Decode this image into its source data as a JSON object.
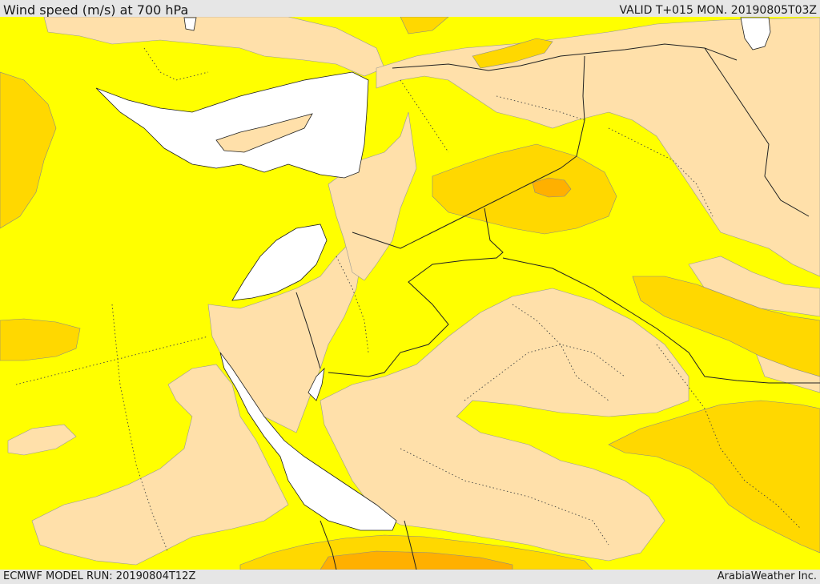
{
  "header": {
    "title": "Wind speed (m/s) at 700 hPa",
    "valid": "VALID T+015 MON. 20190805T03Z"
  },
  "footer": {
    "model_run": "ECMWF MODEL RUN: 20190804T12Z",
    "credit": "ArabiaWeather Inc."
  },
  "colors": {
    "sea_white": "#ffffff",
    "band_low": "#ffe0aa",
    "band_mid": "#ffff00",
    "band_high": "#ffd800",
    "band_top": "#ffb000",
    "border": "#222222"
  }
}
